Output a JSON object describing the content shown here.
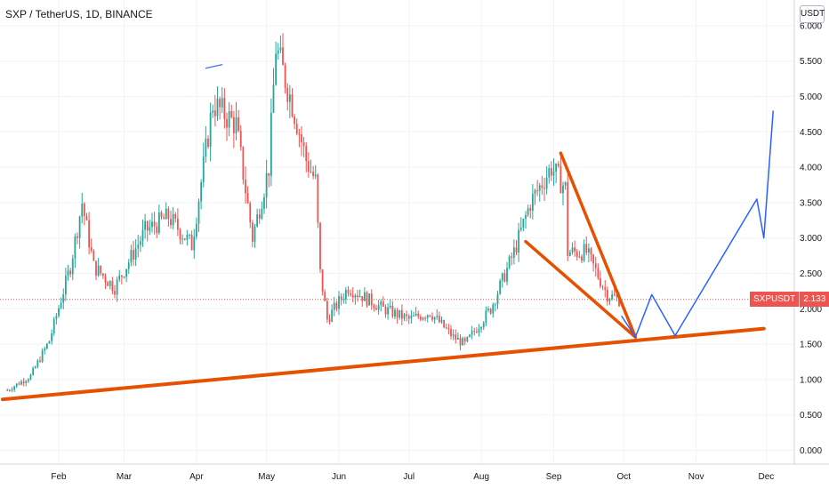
{
  "header": {
    "title": "SXP / TetherUS, 1D, BINANCE",
    "currency_button": "USDT"
  },
  "price_badge": {
    "symbol": "SXPUSDT",
    "price": "2.133"
  },
  "colors": {
    "up": "#26a69a",
    "down": "#ef5350",
    "drawing_orange": "#e65100",
    "projection_blue": "#2962ff",
    "price_line": "#ef5350",
    "grid": "#f0f3fa"
  },
  "chart_data": {
    "type": "candlestick",
    "title": "SXP / TetherUS, 1D, BINANCE",
    "symbol": "SXPUSDT",
    "interval": "1D",
    "exchange": "BINANCE",
    "last_price": 2.133,
    "y_axis": {
      "label": "USDT",
      "range": [
        0,
        6.0
      ],
      "ticks": [
        "0.000",
        "0.500",
        "1.000",
        "1.500",
        "2.000",
        "2.500",
        "3.000",
        "3.500",
        "4.000",
        "4.500",
        "5.000",
        "5.500",
        "6.000"
      ]
    },
    "x_axis": {
      "ticks": [
        "Feb",
        "Mar",
        "Apr",
        "May",
        "Jun",
        "Jul",
        "Aug",
        "Sep",
        "Oct",
        "Nov",
        "Dec"
      ]
    },
    "grid": true,
    "approx_path": [
      {
        "date": "2021-01-10",
        "price": 0.85
      },
      {
        "date": "2021-01-20",
        "price": 1.05
      },
      {
        "date": "2021-01-28",
        "price": 1.55
      },
      {
        "date": "2021-02-06",
        "price": 2.6
      },
      {
        "date": "2021-02-11",
        "price": 3.5
      },
      {
        "date": "2021-02-16",
        "price": 2.6
      },
      {
        "date": "2021-02-25",
        "price": 2.3
      },
      {
        "date": "2021-03-10",
        "price": 3.1
      },
      {
        "date": "2021-03-20",
        "price": 3.3
      },
      {
        "date": "2021-03-30",
        "price": 2.9
      },
      {
        "date": "2021-04-08",
        "price": 4.9
      },
      {
        "date": "2021-04-18",
        "price": 4.6
      },
      {
        "date": "2021-04-25",
        "price": 3.0
      },
      {
        "date": "2021-05-02",
        "price": 4.0
      },
      {
        "date": "2021-05-05",
        "price": 5.7
      },
      {
        "date": "2021-05-12",
        "price": 4.9
      },
      {
        "date": "2021-05-18",
        "price": 4.1
      },
      {
        "date": "2021-05-22",
        "price": 3.8
      },
      {
        "date": "2021-05-24",
        "price": 2.5
      },
      {
        "date": "2021-05-27",
        "price": 1.85
      },
      {
        "date": "2021-06-05",
        "price": 2.3
      },
      {
        "date": "2021-06-20",
        "price": 2.0
      },
      {
        "date": "2021-07-01",
        "price": 1.85
      },
      {
        "date": "2021-07-10",
        "price": 1.95
      },
      {
        "date": "2021-07-20",
        "price": 1.6
      },
      {
        "date": "2021-07-25",
        "price": 1.5
      },
      {
        "date": "2021-08-05",
        "price": 2.0
      },
      {
        "date": "2021-08-15",
        "price": 2.8
      },
      {
        "date": "2021-08-22",
        "price": 3.5
      },
      {
        "date": "2021-08-31",
        "price": 4.0
      },
      {
        "date": "2021-09-06",
        "price": 3.7
      },
      {
        "date": "2021-09-07",
        "price": 2.8
      },
      {
        "date": "2021-09-15",
        "price": 2.8
      },
      {
        "date": "2021-09-24",
        "price": 2.2
      },
      {
        "date": "2021-09-29",
        "price": 2.13
      }
    ],
    "drawings": {
      "support_trendline": [
        {
          "date": "2021-01-08",
          "price": 0.72
        },
        {
          "date": "2021-11-30",
          "price": 1.72
        }
      ],
      "falling_wedge_upper": [
        {
          "date": "2021-09-04",
          "price": 4.2
        },
        {
          "date": "2021-10-06",
          "price": 1.6
        }
      ],
      "falling_wedge_lower": [
        {
          "date": "2021-08-20",
          "price": 2.95
        },
        {
          "date": "2021-10-06",
          "price": 1.6
        }
      ],
      "projection_path": [
        {
          "date": "2021-09-30",
          "price": 1.9
        },
        {
          "date": "2021-10-06",
          "price": 1.6
        },
        {
          "date": "2021-10-13",
          "price": 2.2
        },
        {
          "date": "2021-10-23",
          "price": 1.62
        },
        {
          "date": "2021-11-27",
          "price": 3.55
        },
        {
          "date": "2021-11-30",
          "price": 3.0
        },
        {
          "date": "2021-12-04",
          "price": 4.8
        }
      ],
      "early_blue_bracket": [
        {
          "date": "2021-04-05",
          "price": 5.4
        },
        {
          "date": "2021-04-12",
          "price": 5.45
        }
      ]
    }
  }
}
